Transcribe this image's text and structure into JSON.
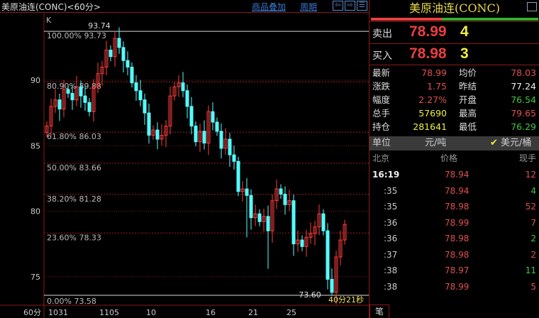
{
  "header": {
    "title": "美原油连(CONC)<60分>",
    "overlay_link": "商品叠加",
    "period_link": "周期",
    "nav_icons": [
      "arrow-left-icon",
      "arrow-right-icon",
      "layout-icon"
    ]
  },
  "chart_data": {
    "type": "candlestick",
    "indicator_label": "K",
    "period_label": "60分",
    "y_ticks": [
      90,
      85,
      80,
      75
    ],
    "ylim": [
      73.2,
      95.2
    ],
    "x_tick_labels": [
      "1031",
      "1105",
      "10",
      "16",
      "21",
      "25"
    ],
    "x_tick_index": [
      1,
      13,
      24,
      38,
      48,
      57
    ],
    "high_marker": "93.74",
    "low_marker": "73.60",
    "countdown": "40分21秒",
    "fib_levels": [
      {
        "label": "100.00% 93.73",
        "value": 93.73
      },
      {
        "label": "80.90% 89.88",
        "value": 89.88
      },
      {
        "label": "61.80% 86.03",
        "value": 86.03
      },
      {
        "label": "50.00% 83.66",
        "value": 83.66
      },
      {
        "label": "38.20% 81.28",
        "value": 81.28
      },
      {
        "label": "23.60% 78.33",
        "value": 78.33
      },
      {
        "label": "0.00% 73.58",
        "value": 73.58
      }
    ],
    "closes": [
      86.5,
      88,
      88.5,
      87.8,
      89.3,
      89,
      88.5,
      89.5,
      88.8,
      88.3,
      87.6,
      89.5,
      90.5,
      91,
      92.3,
      91.8,
      93.2,
      92.5,
      91.5,
      91,
      89.8,
      89.2,
      88.5,
      87.5,
      85.8,
      86.2,
      85.5,
      85.8,
      86.5,
      88.8,
      89.5,
      89.8,
      89.2,
      88,
      86.5,
      85.3,
      86.1,
      85.2,
      87.6,
      86.8,
      86.1,
      84.8,
      85.5,
      84.3,
      83.8,
      81.5,
      81.7,
      81.2,
      79.5,
      79.8,
      79.2,
      79.6,
      78.5,
      80.8,
      81.7,
      81.3,
      80.5,
      80.8,
      77.5,
      77.8,
      77.3,
      78,
      78.3,
      78.8,
      79.8,
      78.5,
      74.8,
      73.8,
      76.5,
      77.8,
      78.99
    ]
  },
  "right_panel": {
    "title": "美原油连(CONC)",
    "ask": {
      "label": "卖出",
      "price": "78.99",
      "vol": "4"
    },
    "bid": {
      "label": "买入",
      "price": "78.98",
      "vol": "3"
    },
    "stats": [
      {
        "l1": "最新",
        "v1": "78.99",
        "c1": "red",
        "l2": "均价",
        "v2": "78.03",
        "c2": "red"
      },
      {
        "l1": "涨跌",
        "v1": "1.75",
        "c1": "red",
        "l2": "昨结",
        "v2": "77.24",
        "c2": "wht"
      },
      {
        "l1": "幅度",
        "v1": "2.27%",
        "c1": "red",
        "l2": "开盘",
        "v2": "76.54",
        "c2": "grn"
      },
      {
        "l1": "总手",
        "v1": "57690",
        "c1": "yel",
        "l2": "最高",
        "v2": "79.65",
        "c2": "red"
      },
      {
        "l1": "持仓",
        "v1": "281641",
        "c1": "yel",
        "l2": "最低",
        "v2": "76.29",
        "c2": "grn"
      }
    ],
    "unit": {
      "label": "单位",
      "opt1": "元/吨",
      "opt2": "美元/桶"
    },
    "ticks_header": {
      "time": "北京",
      "price": "价格",
      "vol": "现手"
    },
    "ticks": [
      {
        "t": "16:19",
        "p": "78.94",
        "v": "12",
        "vc": "red"
      },
      {
        "t": ":35",
        "p": "78.94",
        "v": "4",
        "vc": "grn"
      },
      {
        "t": ":35",
        "p": "78.98",
        "v": "52",
        "vc": "red"
      },
      {
        "t": ":36",
        "p": "78.99",
        "v": "7",
        "vc": "red"
      },
      {
        "t": ":36",
        "p": "78.98",
        "v": "2",
        "vc": "grn"
      },
      {
        "t": ":37",
        "p": "78.98",
        "v": "2",
        "vc": "red"
      },
      {
        "t": ":38",
        "p": "78.97",
        "v": "11",
        "vc": "grn"
      },
      {
        "t": ":38",
        "p": "78.99",
        "v": "5",
        "vc": "red"
      }
    ],
    "tab": "笔"
  }
}
